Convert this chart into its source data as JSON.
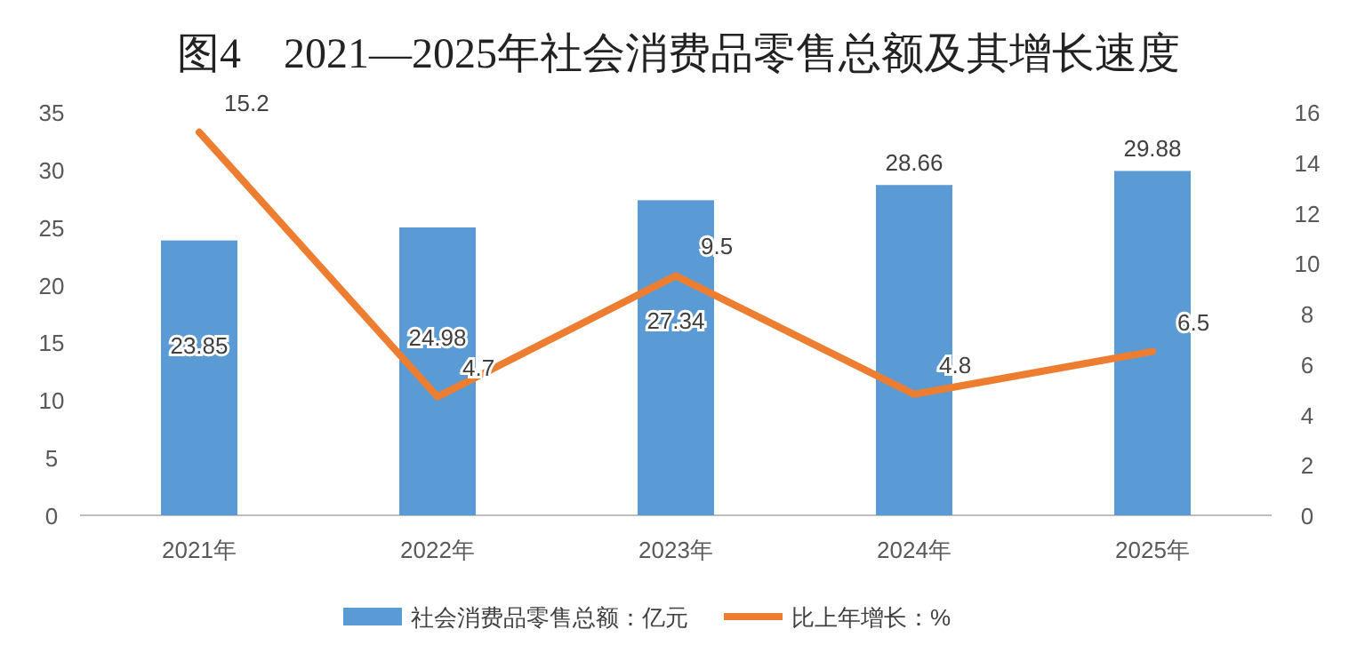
{
  "chart_data": {
    "type": "bar",
    "title": "图4　2021—2025年社会消费品零售总额及其增长速度",
    "categories": [
      "2021年",
      "2022年",
      "2023年",
      "2024年",
      "2025年"
    ],
    "series": [
      {
        "name": "社会消费品零售总额：亿元",
        "color": "#5b9bd5",
        "values": [
          23.85,
          24.98,
          27.34,
          28.66,
          29.88
        ]
      },
      {
        "name": "比上年增长：%",
        "type": "line",
        "axis": "y2",
        "color": "#ed7d31",
        "values": [
          15.2,
          4.7,
          9.5,
          4.8,
          6.5
        ]
      }
    ],
    "ylim": [
      0,
      35
    ],
    "yticks": [
      0,
      5,
      10,
      15,
      20,
      25,
      30,
      35
    ],
    "y2lim": [
      0,
      16
    ],
    "y2ticks": [
      0,
      2,
      4,
      6,
      8,
      10,
      12,
      14,
      16
    ],
    "data_labels": true,
    "legend": "bottom",
    "grid": false,
    "marker": "none"
  }
}
